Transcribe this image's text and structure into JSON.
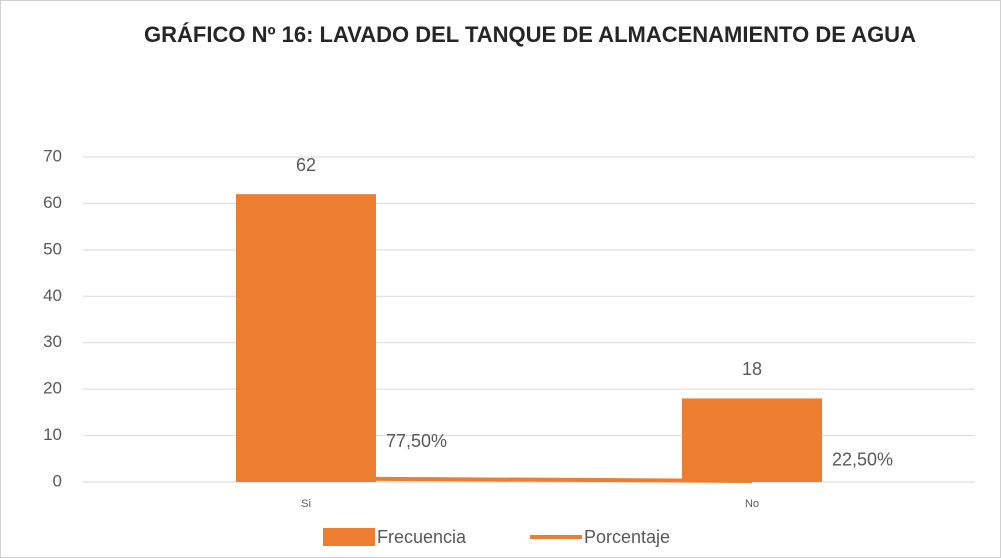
{
  "chart_data": {
    "type": "bar",
    "title": "GRÁFICO Nº 16: LAVADO DEL TANQUE DE ALMACENAMIENTO DE AGUA",
    "categories": [
      "Si",
      "No"
    ],
    "series": [
      {
        "name": "Frecuencia",
        "type": "bar",
        "color": "#ed7d31",
        "values": [
          62,
          18
        ]
      },
      {
        "name": "Porcentaje",
        "type": "line",
        "color": "#ed7d31",
        "values": [
          0.775,
          0.225
        ],
        "value_labels": [
          "77,50%",
          "22,50%"
        ]
      }
    ],
    "ylim": [
      0,
      70
    ],
    "yticks": [
      0,
      10,
      20,
      30,
      40,
      50,
      60,
      70
    ],
    "grid": true,
    "legend": "bottom"
  }
}
